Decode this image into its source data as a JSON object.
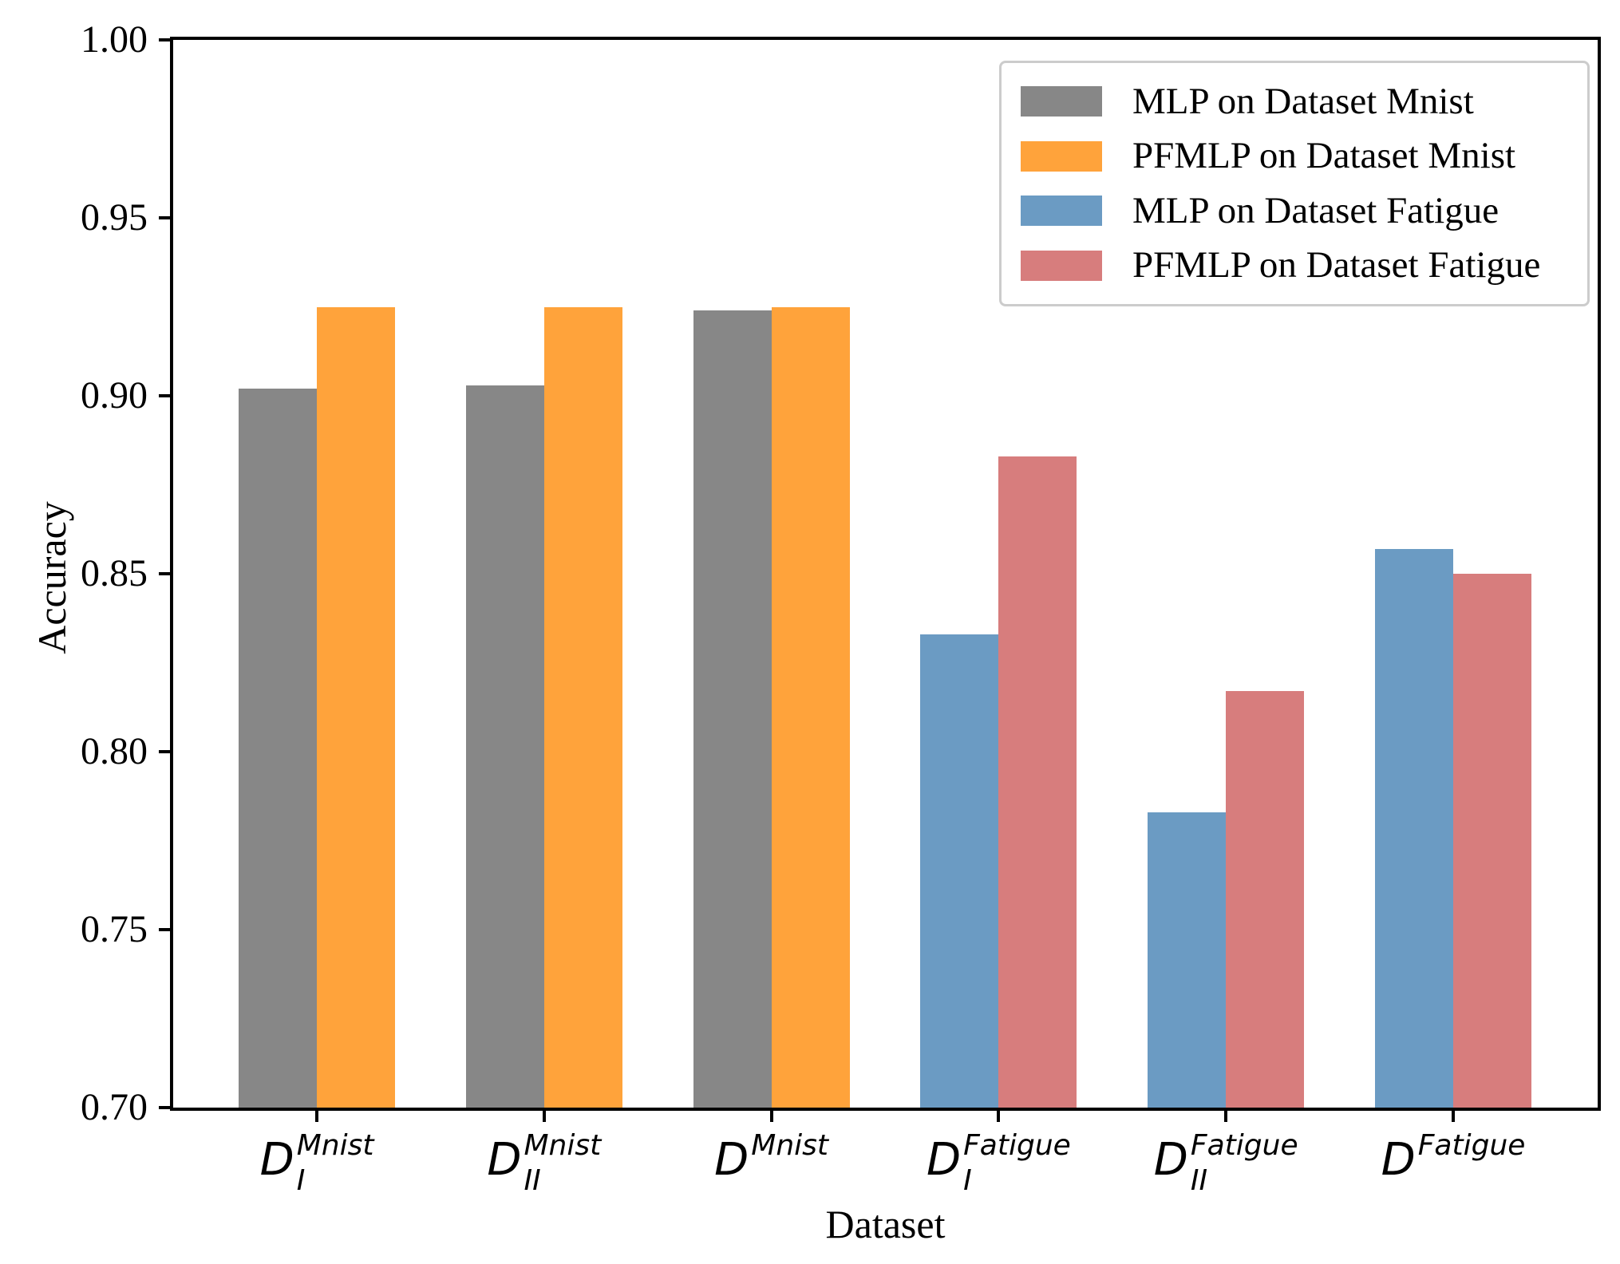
{
  "chart_data": {
    "type": "bar",
    "title": "",
    "xlabel": "Dataset",
    "ylabel": "Accuracy",
    "ylim": [
      0.7,
      1.0
    ],
    "yticks": [
      0.7,
      0.75,
      0.8,
      0.85,
      0.9,
      0.95,
      1.0
    ],
    "grid": false,
    "legend_position": "upper right",
    "categories": [
      {
        "base": "D",
        "sub": "I",
        "sup": "Mnist"
      },
      {
        "base": "D",
        "sub": "II",
        "sup": "Mnist"
      },
      {
        "base": "D",
        "sub": "",
        "sup": "Mnist"
      },
      {
        "base": "D",
        "sub": "I",
        "sup": "Fatigue"
      },
      {
        "base": "D",
        "sub": "II",
        "sup": "Fatigue"
      },
      {
        "base": "D",
        "sub": "",
        "sup": "Fatigue"
      }
    ],
    "series": [
      {
        "name": "MLP on Dataset Mnist",
        "color": "#878787",
        "values": [
          0.902,
          0.903,
          0.924,
          null,
          null,
          null
        ]
      },
      {
        "name": "PFMLP on Dataset Mnist",
        "color": "#FFA33B",
        "values": [
          0.925,
          0.925,
          0.925,
          null,
          null,
          null
        ]
      },
      {
        "name": "MLP on Dataset Fatigue",
        "color": "#6B9BC3",
        "values": [
          null,
          null,
          null,
          0.833,
          0.783,
          0.857
        ]
      },
      {
        "name": "PFMLP on Dataset Fatigue",
        "color": "#D77D7D",
        "values": [
          null,
          null,
          null,
          0.883,
          0.817,
          0.85
        ]
      }
    ]
  },
  "axes": {
    "spine_color": "#000000",
    "tick_color": "#000000",
    "legend_border_color": "#cccccc"
  }
}
